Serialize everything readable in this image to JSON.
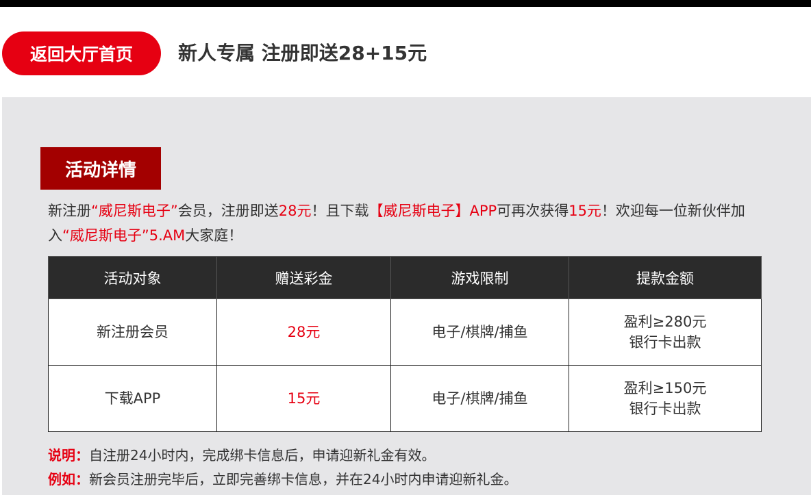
{
  "header": {
    "back_button": "返回大厅首页",
    "title": "新人专属 注册即送28+15元"
  },
  "section": {
    "tag": "活动详情",
    "intro": [
      {
        "t": "新注册",
        "red": false
      },
      {
        "t": "“威尼斯电子”",
        "red": true
      },
      {
        "t": "会员，注册即送",
        "red": false
      },
      {
        "t": "28元",
        "red": true
      },
      {
        "t": "！且下载",
        "red": false
      },
      {
        "t": "【威尼斯电子】APP",
        "red": true
      },
      {
        "t": "可再次获得",
        "red": false
      },
      {
        "t": "15元",
        "red": true
      },
      {
        "t": "！欢迎每一位新伙伴加入",
        "red": false
      },
      {
        "t": "“威尼斯电子”",
        "red": true
      },
      {
        "t": "5.AM",
        "red": true
      },
      {
        "t": "大家庭！",
        "red": false
      }
    ]
  },
  "table": {
    "headers": [
      "活动对象",
      "赠送彩金",
      "游戏限制",
      "提款金额"
    ],
    "rows": [
      {
        "target": "新注册会员",
        "bonus": "28元",
        "games": "电子/棋牌/捕鱼",
        "withdraw1": "盈利≥280元",
        "withdraw2": "银行卡出款"
      },
      {
        "target": "下载APP",
        "bonus": "15元",
        "games": "电子/棋牌/捕鱼",
        "withdraw1": "盈利≥150元",
        "withdraw2": "银行卡出款"
      }
    ]
  },
  "notes": [
    {
      "label": "说明：",
      "text": "自注册24小时内，完成绑卡信息后，申请迎新礼金有效。"
    },
    {
      "label": "例如：",
      "text": "新会员注册完毕后，立即完善绑卡信息，并在24小时内申请迎新礼金。"
    }
  ],
  "colors": {
    "accent": "#e60012",
    "tag": "#a30000",
    "table_header": "#2b2b2b"
  }
}
